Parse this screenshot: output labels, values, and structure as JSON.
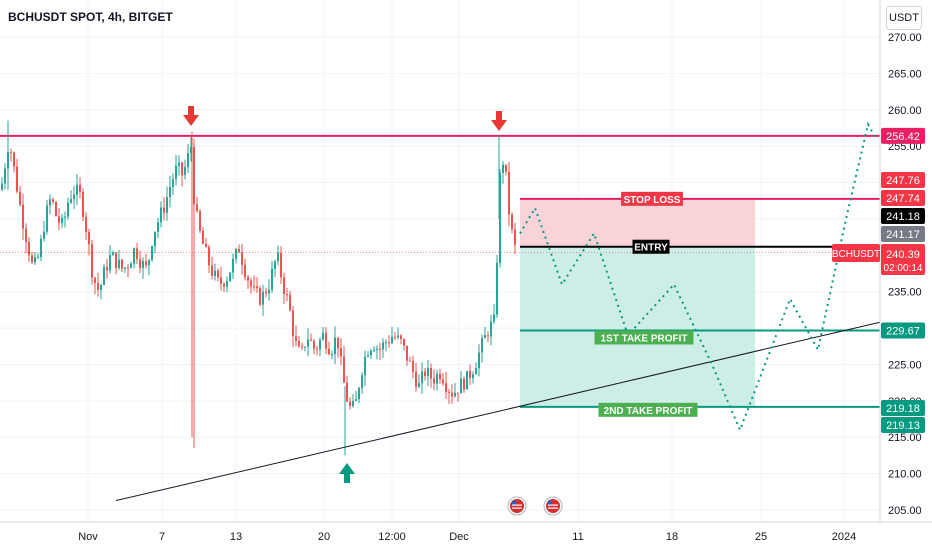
{
  "header": {
    "title": "BCHUSDT SPOT, 4h, BITGET",
    "currency": "USDT"
  },
  "colors": {
    "up": "#26a69a",
    "down": "#ef5350",
    "resistance": "#e91e63",
    "stop_zone": "#f8d3d7",
    "target_zone": "#cdeee6",
    "take_profit": "#089981",
    "path": "#089981"
  },
  "chart_data": {
    "type": "candlestick",
    "symbol": "BCHUSDT",
    "ylim": [
      203,
      271
    ],
    "y_ticks": [
      "205.00",
      "210.00",
      "215.00",
      "220.00",
      "225.00",
      "230.00",
      "235.00",
      "240.00",
      "245.00",
      "250.00",
      "255.00",
      "260.00",
      "265.00",
      "270.00"
    ],
    "x_ticks": [
      "Nov",
      "7",
      "13",
      "20",
      "12:00",
      "Dec",
      "11",
      "18",
      "25",
      "2024"
    ],
    "price_path": [
      [
        0,
        249
      ],
      [
        8,
        256
      ],
      [
        14,
        251
      ],
      [
        20,
        246
      ],
      [
        26,
        242
      ],
      [
        32,
        238
      ],
      [
        38,
        240
      ],
      [
        44,
        245
      ],
      [
        50,
        248
      ],
      [
        56,
        245
      ],
      [
        62,
        244
      ],
      [
        68,
        248
      ],
      [
        74,
        249
      ],
      [
        80,
        248
      ],
      [
        86,
        243
      ],
      [
        92,
        237
      ],
      [
        98,
        235
      ],
      [
        104,
        238
      ],
      [
        110,
        240
      ],
      [
        116,
        239
      ],
      [
        122,
        238
      ],
      [
        128,
        239
      ],
      [
        134,
        241
      ],
      [
        140,
        239
      ],
      [
        146,
        238
      ],
      [
        152,
        243
      ],
      [
        158,
        245
      ],
      [
        164,
        247
      ],
      [
        170,
        250
      ],
      [
        176,
        252
      ],
      [
        182,
        251
      ],
      [
        188,
        254
      ],
      [
        190,
        255
      ],
      [
        193,
        248
      ],
      [
        197,
        244
      ],
      [
        203,
        241
      ],
      [
        210,
        238
      ],
      [
        218,
        236
      ],
      [
        226,
        237
      ],
      [
        232,
        239
      ],
      [
        238,
        241
      ],
      [
        244,
        238
      ],
      [
        252,
        235
      ],
      [
        260,
        234
      ],
      [
        268,
        236
      ],
      [
        276,
        240
      ],
      [
        282,
        236
      ],
      [
        288,
        233
      ],
      [
        294,
        228
      ],
      [
        300,
        226
      ],
      [
        306,
        229
      ],
      [
        314,
        227
      ],
      [
        322,
        229
      ],
      [
        330,
        227
      ],
      [
        336,
        229
      ],
      [
        342,
        223
      ],
      [
        348,
        219
      ],
      [
        354,
        219
      ],
      [
        360,
        224
      ],
      [
        366,
        227
      ],
      [
        372,
        228
      ],
      [
        378,
        227
      ],
      [
        384,
        228
      ],
      [
        392,
        229
      ],
      [
        400,
        228
      ],
      [
        406,
        226
      ],
      [
        412,
        224
      ],
      [
        418,
        222
      ],
      [
        424,
        224
      ],
      [
        432,
        223
      ],
      [
        440,
        224
      ],
      [
        446,
        222
      ],
      [
        452,
        221
      ],
      [
        458,
        222
      ],
      [
        466,
        223
      ],
      [
        474,
        225
      ],
      [
        482,
        228
      ],
      [
        488,
        230
      ],
      [
        494,
        231
      ],
      [
        497,
        244
      ],
      [
        500,
        254
      ],
      [
        504,
        252
      ],
      [
        508,
        246
      ],
      [
        512,
        242
      ],
      [
        516,
        240
      ]
    ],
    "key_levels": {
      "resistance": 256.42,
      "stop_loss": 247.76,
      "stop_loss_2": 247.74,
      "entry": 241.18,
      "entry_2": 241.17,
      "last_price": 240.39,
      "take_profit_1": 229.67,
      "take_profit_2": 219.18,
      "take_profit_2b": 219.13
    },
    "price_tags": {
      "resistance": "256.42",
      "stop_loss": "247.76",
      "stop_loss_2": "247.74",
      "entry": "241.18",
      "entry_2": "241.17",
      "symbol": "BCHUSDT",
      "last_price": "240.39",
      "countdown": "02:00:14",
      "take_profit_1": "229.67",
      "take_profit_2": "219.18",
      "take_profit_2b": "219.13"
    },
    "labels": {
      "stop_loss": "STOP LOSS",
      "entry": "ENTRY",
      "tp1": "1ST TAKE PROFIT",
      "tp2": "2ND TAKE PROFIT"
    },
    "projection_path": [
      [
        520,
        243
      ],
      [
        535,
        246.5
      ],
      [
        562,
        236
      ],
      [
        594,
        243
      ],
      [
        628,
        229
      ],
      [
        674,
        236
      ],
      [
        712,
        225
      ],
      [
        740,
        216
      ],
      [
        790,
        234
      ],
      [
        818,
        227
      ],
      [
        846,
        245
      ],
      [
        868,
        258
      ],
      [
        876,
        256
      ]
    ],
    "trendline": [
      [
        116,
        206.3
      ],
      [
        880,
        230.8
      ]
    ]
  }
}
